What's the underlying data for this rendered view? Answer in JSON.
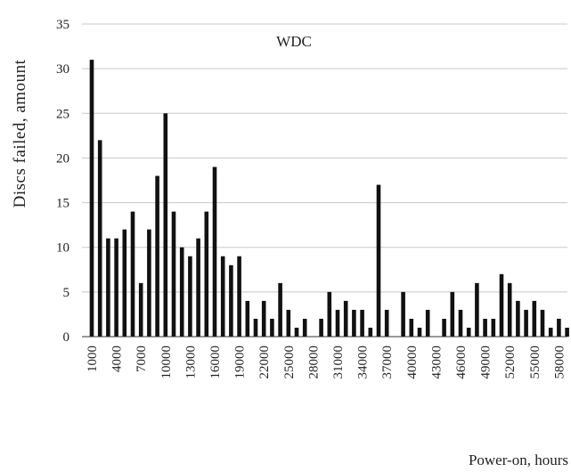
{
  "chart_data": {
    "type": "bar",
    "title": "WDC",
    "xlabel": "Power-on, hours",
    "ylabel": "Discs failed, amount",
    "ylim": [
      0,
      35
    ],
    "yticks": [
      0,
      5,
      10,
      15,
      20,
      25,
      30,
      35
    ],
    "grid": true,
    "x": [
      1000,
      2000,
      3000,
      4000,
      5000,
      6000,
      7000,
      8000,
      9000,
      10000,
      11000,
      12000,
      13000,
      14000,
      15000,
      16000,
      17000,
      18000,
      19000,
      20000,
      21000,
      22000,
      23000,
      24000,
      25000,
      26000,
      27000,
      28000,
      29000,
      30000,
      31000,
      32000,
      33000,
      34000,
      35000,
      36000,
      37000,
      38000,
      39000,
      40000,
      41000,
      42000,
      43000,
      44000,
      45000,
      46000,
      47000,
      48000,
      49000,
      50000,
      51000,
      52000,
      53000,
      54000,
      55000,
      56000,
      57000,
      58000,
      59000
    ],
    "values": [
      31,
      22,
      11,
      11,
      12,
      14,
      6,
      12,
      18,
      25,
      14,
      10,
      9,
      11,
      14,
      19,
      9,
      8,
      9,
      4,
      2,
      4,
      2,
      6,
      3,
      1,
      2,
      0,
      2,
      5,
      3,
      4,
      3,
      3,
      1,
      17,
      3,
      0,
      5,
      2,
      1,
      3,
      0,
      2,
      5,
      3,
      1,
      6,
      2,
      2,
      7,
      6,
      4,
      3,
      4,
      3,
      1,
      2,
      1
    ],
    "xtick_labels": [
      "1000",
      "4000",
      "7000",
      "10000",
      "13000",
      "16000",
      "19000",
      "22000",
      "25000",
      "28000",
      "31000",
      "34000",
      "37000",
      "40000",
      "43000",
      "46000",
      "49000",
      "52000",
      "55000",
      "58000"
    ]
  }
}
